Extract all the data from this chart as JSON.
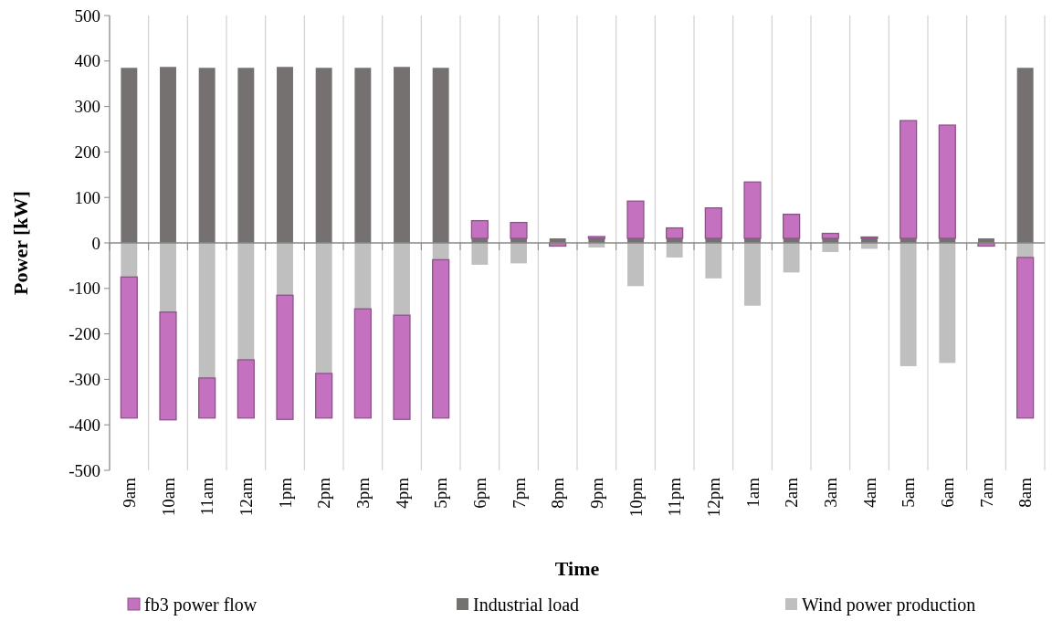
{
  "chart_data": {
    "type": "bar",
    "stacked": true,
    "xlabel": "Time",
    "ylabel": "Power [kW]",
    "categories": [
      "9am",
      "10am",
      "11am",
      "12am",
      "1pm",
      "2pm",
      "3pm",
      "4pm",
      "5pm",
      "6pm",
      "7pm",
      "8pm",
      "9pm",
      "10pm",
      "11pm",
      "12pm",
      "1am",
      "2am",
      "3am",
      "4am",
      "5am",
      "6am",
      "7am",
      "8am"
    ],
    "series": [
      {
        "name": "Wind power production",
        "color": "#bfbfbf",
        "values": [
          -75,
          -152,
          -297,
          -257,
          -115,
          -287,
          -145,
          -159,
          -37,
          -48,
          -45,
          null,
          -10,
          -95,
          -32,
          -78,
          -138,
          -65,
          -20,
          -13,
          -271,
          -264,
          null,
          -32
        ]
      },
      {
        "name": "Industrial load",
        "color": "#757171",
        "values": [
          385,
          387,
          385,
          385,
          387,
          385,
          385,
          387,
          385,
          10,
          10,
          10,
          10,
          10,
          10,
          10,
          10,
          10,
          10,
          10,
          10,
          10,
          10,
          385
        ]
      },
      {
        "name": "fb3 power flow",
        "color": "#c471c0",
        "values": [
          -310,
          -237,
          -88,
          -128,
          -273,
          -98,
          -240,
          -229,
          -348,
          39,
          35,
          -7,
          4,
          82,
          23,
          67,
          124,
          53,
          11,
          3,
          259,
          249,
          -7,
          -353
        ]
      }
    ],
    "ylim": [
      -500,
      500
    ],
    "yticks": [
      -500,
      -400,
      -300,
      -200,
      -100,
      0,
      100,
      200,
      300,
      400,
      500
    ],
    "grid": "x",
    "legend": "bottom"
  }
}
